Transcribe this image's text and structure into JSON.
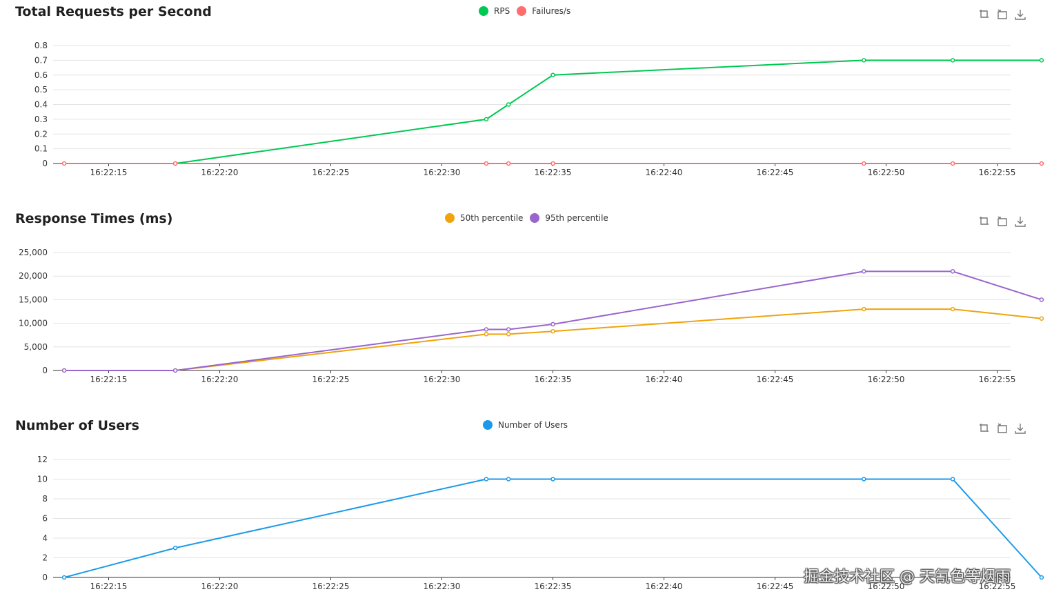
{
  "chart_data": [
    {
      "type": "line",
      "title": "Total Requests per Second",
      "x": [
        "16:22:18",
        "16:22:32",
        "16:22:33",
        "16:22:35",
        "16:22:49",
        "16:22:53",
        "16:22:57"
      ],
      "x_ticks": [
        "16:22:15",
        "16:22:20",
        "16:22:25",
        "16:22:30",
        "16:22:35",
        "16:22:40",
        "16:22:45",
        "16:22:50",
        "16:22:55"
      ],
      "y_ticks": [
        "0",
        "0.1",
        "0.2",
        "0.3",
        "0.4",
        "0.5",
        "0.6",
        "0.7",
        "0.8"
      ],
      "ylim": [
        0,
        0.8
      ],
      "grid": true,
      "legend": "top-center",
      "series": [
        {
          "name": "RPS",
          "color": "#00c853",
          "x": [
            "16:22:18",
            "16:22:32",
            "16:22:33",
            "16:22:35",
            "16:22:49",
            "16:22:53",
            "16:22:57"
          ],
          "values": [
            0,
            0.3,
            0.4,
            0.6,
            0.7,
            0.7,
            0.7
          ]
        },
        {
          "name": "Failures/s",
          "color": "#ff6d6d",
          "x": [
            "16:22:13",
            "16:22:18",
            "16:22:32",
            "16:22:33",
            "16:22:35",
            "16:22:49",
            "16:22:53",
            "16:22:57"
          ],
          "values": [
            0,
            0,
            0,
            0,
            0,
            0,
            0,
            0
          ]
        }
      ]
    },
    {
      "type": "line",
      "title": "Response Times (ms)",
      "x_ticks": [
        "16:22:15",
        "16:22:20",
        "16:22:25",
        "16:22:30",
        "16:22:35",
        "16:22:40",
        "16:22:45",
        "16:22:50",
        "16:22:55"
      ],
      "y_ticks": [
        "0",
        "5,000",
        "10,000",
        "15,000",
        "20,000",
        "25,000"
      ],
      "ylim": [
        0,
        25000
      ],
      "grid": true,
      "legend": "top-center",
      "series": [
        {
          "name": "50th percentile",
          "color": "#f0a30a",
          "x": [
            "16:22:13",
            "16:22:18",
            "16:22:32",
            "16:22:33",
            "16:22:35",
            "16:22:49",
            "16:22:53",
            "16:22:57"
          ],
          "values": [
            0,
            0,
            7700,
            7700,
            8300,
            13000,
            13000,
            11000
          ]
        },
        {
          "name": "95th percentile",
          "color": "#9966cc",
          "x": [
            "16:22:13",
            "16:22:18",
            "16:22:32",
            "16:22:33",
            "16:22:35",
            "16:22:49",
            "16:22:53",
            "16:22:57"
          ],
          "values": [
            0,
            0,
            8700,
            8700,
            9800,
            21000,
            21000,
            15000
          ]
        }
      ]
    },
    {
      "type": "line",
      "title": "Number of Users",
      "x_ticks": [
        "16:22:15",
        "16:22:20",
        "16:22:25",
        "16:22:30",
        "16:22:35",
        "16:22:40",
        "16:22:45",
        "16:22:50",
        "16:22:55"
      ],
      "y_ticks": [
        "0",
        "2",
        "4",
        "6",
        "8",
        "10",
        "12"
      ],
      "ylim": [
        0,
        12
      ],
      "grid": true,
      "legend": "top-center",
      "series": [
        {
          "name": "Number of Users",
          "color": "#1a9bea",
          "x": [
            "16:22:13",
            "16:22:18",
            "16:22:32",
            "16:22:33",
            "16:22:35",
            "16:22:49",
            "16:22:53",
            "16:22:57"
          ],
          "values": [
            0,
            3,
            10,
            10,
            10,
            10,
            10,
            0
          ]
        }
      ]
    }
  ],
  "toolbox": [
    "restore-zoom-icon",
    "zoom-icon",
    "download-icon"
  ],
  "watermark": "掘金技术社区 @ 天氰色等烟雨"
}
